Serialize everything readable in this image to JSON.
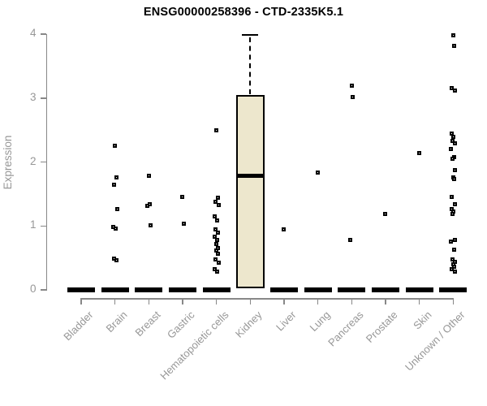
{
  "chart_data": {
    "type": "boxplot",
    "title": "ENSG00000258396 - CTD-2335K5.1",
    "xlabel": "",
    "ylabel": "Expression",
    "ylim": [
      0,
      4
    ],
    "yticks": [
      0,
      1,
      2,
      3,
      4
    ],
    "grid": false,
    "legend": false,
    "categories": [
      "Bladder",
      "Brain",
      "Breast",
      "Gastric",
      "Hematopoietic cells",
      "Kidney",
      "Liver",
      "Lung",
      "Pancreas",
      "Prostate",
      "Skin",
      "Unknown / Other"
    ],
    "series": [
      {
        "category": "Bladder",
        "box": {
          "q1": 0,
          "median": 0,
          "q3": 0
        },
        "points": []
      },
      {
        "category": "Brain",
        "box": {
          "q1": 0,
          "median": 0,
          "q3": 0
        },
        "points": [
          2.26,
          1.76,
          1.64,
          1.26,
          0.98,
          0.96,
          0.49,
          0.46
        ]
      },
      {
        "category": "Breast",
        "box": {
          "q1": 0,
          "median": 0,
          "q3": 0
        },
        "points": [
          1.79,
          1.34,
          1.31,
          1.01
        ]
      },
      {
        "category": "Gastric",
        "box": {
          "q1": 0,
          "median": 0,
          "q3": 0
        },
        "points": [
          1.46,
          1.04
        ]
      },
      {
        "category": "Hematopoietic cells",
        "box": {
          "q1": 0,
          "median": 0,
          "q3": 0
        },
        "points": [
          2.5,
          1.44,
          1.38,
          1.33,
          1.15,
          1.09,
          0.95,
          0.89,
          0.83,
          0.78,
          0.72,
          0.66,
          0.61,
          0.57,
          0.48,
          0.42,
          0.33,
          0.28
        ]
      },
      {
        "category": "Kidney",
        "box": {
          "q1": 0.02,
          "median": 1.78,
          "q3": 3.05,
          "whisker_high": 3.99
        },
        "points": []
      },
      {
        "category": "Liver",
        "box": {
          "q1": 0,
          "median": 0,
          "q3": 0
        },
        "points": [
          0.95
        ]
      },
      {
        "category": "Lung",
        "box": {
          "q1": 0,
          "median": 0,
          "q3": 0
        },
        "points": [
          1.83
        ]
      },
      {
        "category": "Pancreas",
        "box": {
          "q1": 0,
          "median": 0,
          "q3": 0
        },
        "points": [
          3.19,
          3.02,
          0.78
        ]
      },
      {
        "category": "Prostate",
        "box": {
          "q1": 0,
          "median": 0,
          "q3": 0
        },
        "points": [
          1.19
        ]
      },
      {
        "category": "Skin",
        "box": {
          "q1": 0,
          "median": 0,
          "q3": 0
        },
        "points": [
          2.14
        ]
      },
      {
        "category": "Unknown / Other",
        "box": {
          "q1": 0,
          "median": 0,
          "q3": 0
        },
        "points": [
          3.98,
          3.81,
          3.16,
          3.12,
          2.44,
          2.39,
          2.33,
          2.29,
          2.2,
          2.07,
          2.05,
          1.87,
          1.76,
          1.73,
          1.46,
          1.34,
          1.26,
          1.22,
          1.19,
          0.78,
          0.75,
          0.63,
          0.48,
          0.44,
          0.4,
          0.36,
          0.32,
          0.28
        ]
      }
    ],
    "colors": {
      "box_fill": "#EDE7CD",
      "box_border": "#000000",
      "median": "#000000",
      "point": "#000000",
      "axis": "#888888",
      "label": "#979797",
      "title": "#000000",
      "background": "#FFFFFF"
    }
  }
}
